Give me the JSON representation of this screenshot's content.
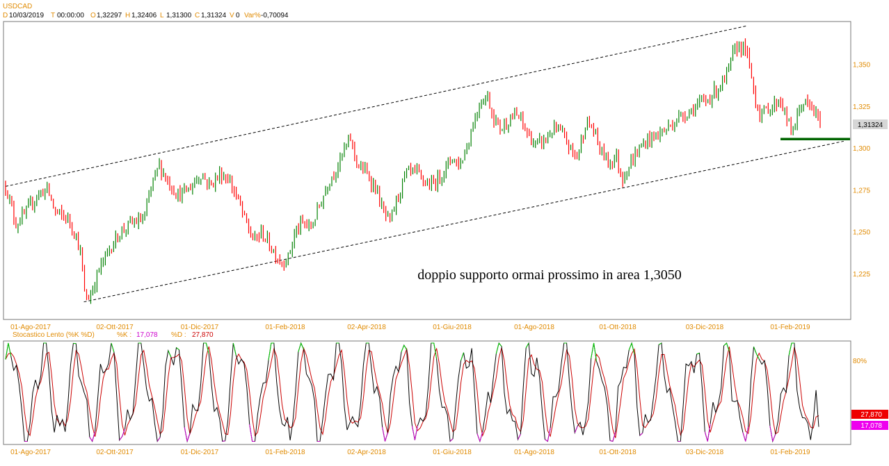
{
  "symbol": "USDCAD",
  "info_bar": [
    {
      "key": "D",
      "value": "10/03/2019"
    },
    {
      "key": "T",
      "value": "00:00:00"
    },
    {
      "key": "O",
      "value": "1,32297"
    },
    {
      "key": "H",
      "value": "1,32406"
    },
    {
      "key": "L",
      "value": "1,31300"
    },
    {
      "key": "C",
      "value": "1,31324"
    },
    {
      "key": "V",
      "value": "0"
    },
    {
      "key": "Var%",
      "value": "-0,70094"
    }
  ],
  "colors": {
    "up": "#008000",
    "down": "#ff0000",
    "axis_text": "#e08a00",
    "support": "#006400",
    "stoch_k": "#000000",
    "stoch_d": "#cc0000",
    "overbought": "#00cc00",
    "oversold": "#cc00cc"
  },
  "annotation": "doppio supporto ormai prossimo in area 1,3050",
  "price_label": "1,31324",
  "stoch_title": "Stocastico Lento (%K %D)",
  "stoch_k_label": "%K :",
  "stoch_k_value": "17,078",
  "stoch_d_label": "%D :",
  "stoch_d_value": "27,870",
  "stoch_level": "80%",
  "chart_data": [
    {
      "type": "candlestick",
      "title": "USDCAD",
      "x_tick_labels": [
        "01-Ago-2017",
        "02-Ott-2017",
        "01-Dic-2017",
        "01-Feb-2018",
        "02-Apr-2018",
        "01-Giu-2018",
        "01-Ago-2018",
        "01-Ott-2018",
        "03-Dic-2018",
        "01-Feb-2019"
      ],
      "y_tick_labels": [
        "1,350",
        "1,325",
        "1,300",
        "1,275",
        "1,250",
        "1,225"
      ],
      "y_ticks": [
        1.35,
        1.325,
        1.3,
        1.275,
        1.25,
        1.225
      ],
      "ylim": [
        1.198,
        1.376
      ],
      "last_close": 1.31324,
      "close_path": [
        {
          "x": 0,
          "y": 1.278
        },
        {
          "x": 15,
          "y": 1.255
        },
        {
          "x": 30,
          "y": 1.262
        },
        {
          "x": 45,
          "y": 1.272
        },
        {
          "x": 60,
          "y": 1.276
        },
        {
          "x": 72,
          "y": 1.262
        },
        {
          "x": 90,
          "y": 1.258
        },
        {
          "x": 100,
          "y": 1.25
        },
        {
          "x": 108,
          "y": 1.238
        },
        {
          "x": 115,
          "y": 1.21
        },
        {
          "x": 122,
          "y": 1.212
        },
        {
          "x": 135,
          "y": 1.228
        },
        {
          "x": 150,
          "y": 1.24
        },
        {
          "x": 165,
          "y": 1.25
        },
        {
          "x": 180,
          "y": 1.255
        },
        {
          "x": 200,
          "y": 1.258
        },
        {
          "x": 212,
          "y": 1.28
        },
        {
          "x": 222,
          "y": 1.29
        },
        {
          "x": 235,
          "y": 1.28
        },
        {
          "x": 250,
          "y": 1.272
        },
        {
          "x": 265,
          "y": 1.276
        },
        {
          "x": 282,
          "y": 1.285
        },
        {
          "x": 295,
          "y": 1.278
        },
        {
          "x": 310,
          "y": 1.285
        },
        {
          "x": 322,
          "y": 1.282
        },
        {
          "x": 335,
          "y": 1.27
        },
        {
          "x": 345,
          "y": 1.258
        },
        {
          "x": 358,
          "y": 1.245
        },
        {
          "x": 370,
          "y": 1.25
        },
        {
          "x": 385,
          "y": 1.24
        },
        {
          "x": 398,
          "y": 1.232
        },
        {
          "x": 408,
          "y": 1.235
        },
        {
          "x": 418,
          "y": 1.25
        },
        {
          "x": 430,
          "y": 1.256
        },
        {
          "x": 440,
          "y": 1.252
        },
        {
          "x": 455,
          "y": 1.268
        },
        {
          "x": 468,
          "y": 1.282
        },
        {
          "x": 480,
          "y": 1.29
        },
        {
          "x": 490,
          "y": 1.3
        },
        {
          "x": 498,
          "y": 1.306
        },
        {
          "x": 508,
          "y": 1.29
        },
        {
          "x": 520,
          "y": 1.286
        },
        {
          "x": 535,
          "y": 1.276
        },
        {
          "x": 545,
          "y": 1.262
        },
        {
          "x": 555,
          "y": 1.256
        },
        {
          "x": 565,
          "y": 1.27
        },
        {
          "x": 578,
          "y": 1.285
        },
        {
          "x": 592,
          "y": 1.286
        },
        {
          "x": 605,
          "y": 1.28
        },
        {
          "x": 615,
          "y": 1.278
        },
        {
          "x": 630,
          "y": 1.285
        },
        {
          "x": 645,
          "y": 1.295
        },
        {
          "x": 655,
          "y": 1.29
        },
        {
          "x": 665,
          "y": 1.3
        },
        {
          "x": 675,
          "y": 1.315
        },
        {
          "x": 685,
          "y": 1.328
        },
        {
          "x": 695,
          "y": 1.332
        },
        {
          "x": 705,
          "y": 1.318
        },
        {
          "x": 715,
          "y": 1.312
        },
        {
          "x": 728,
          "y": 1.318
        },
        {
          "x": 740,
          "y": 1.32
        },
        {
          "x": 752,
          "y": 1.31
        },
        {
          "x": 765,
          "y": 1.302
        },
        {
          "x": 778,
          "y": 1.305
        },
        {
          "x": 792,
          "y": 1.312
        },
        {
          "x": 805,
          "y": 1.308
        },
        {
          "x": 815,
          "y": 1.3
        },
        {
          "x": 825,
          "y": 1.295
        },
        {
          "x": 838,
          "y": 1.316
        },
        {
          "x": 848,
          "y": 1.312
        },
        {
          "x": 858,
          "y": 1.3
        },
        {
          "x": 870,
          "y": 1.292
        },
        {
          "x": 882,
          "y": 1.295
        },
        {
          "x": 890,
          "y": 1.282
        },
        {
          "x": 900,
          "y": 1.29
        },
        {
          "x": 912,
          "y": 1.298
        },
        {
          "x": 925,
          "y": 1.305
        },
        {
          "x": 940,
          "y": 1.308
        },
        {
          "x": 955,
          "y": 1.312
        },
        {
          "x": 970,
          "y": 1.318
        },
        {
          "x": 985,
          "y": 1.322
        },
        {
          "x": 1000,
          "y": 1.326
        },
        {
          "x": 1015,
          "y": 1.33
        },
        {
          "x": 1028,
          "y": 1.336
        },
        {
          "x": 1040,
          "y": 1.342
        },
        {
          "x": 1050,
          "y": 1.356
        },
        {
          "x": 1058,
          "y": 1.362
        },
        {
          "x": 1068,
          "y": 1.36
        },
        {
          "x": 1076,
          "y": 1.345
        },
        {
          "x": 1082,
          "y": 1.33
        },
        {
          "x": 1090,
          "y": 1.32
        },
        {
          "x": 1100,
          "y": 1.324
        },
        {
          "x": 1110,
          "y": 1.326
        },
        {
          "x": 1118,
          "y": 1.33
        },
        {
          "x": 1126,
          "y": 1.32
        },
        {
          "x": 1134,
          "y": 1.31
        },
        {
          "x": 1140,
          "y": 1.315
        },
        {
          "x": 1150,
          "y": 1.328
        },
        {
          "x": 1160,
          "y": 1.325
        },
        {
          "x": 1168,
          "y": 1.322
        },
        {
          "x": 1177,
          "y": 1.313
        }
      ],
      "support_level": 1.3058,
      "channel_upper": [
        {
          "x": 0,
          "y": 1.2775
        },
        {
          "x": 1071,
          "y": 1.3735
        }
      ],
      "channel_lower": [
        {
          "x": 113,
          "y": 1.2085
        },
        {
          "x": 1210,
          "y": 1.3045
        }
      ]
    },
    {
      "type": "line",
      "title": "Stocastico Lento (%K %D)",
      "ylim": [
        0,
        100
      ],
      "y_tick_labels": [
        "80%"
      ],
      "series": [
        {
          "name": "%K",
          "last": 17.078
        },
        {
          "name": "%D",
          "last": 27.87
        }
      ],
      "x_tick_labels": [
        "01-Ago-2017",
        "02-Ott-2017",
        "01-Dic-2017",
        "01-Feb-2018",
        "02-Apr-2018",
        "01-Giu-2018",
        "01-Ago-2018",
        "01-Ott-2018",
        "03-Dic-2018",
        "01-Feb-2019"
      ]
    }
  ]
}
